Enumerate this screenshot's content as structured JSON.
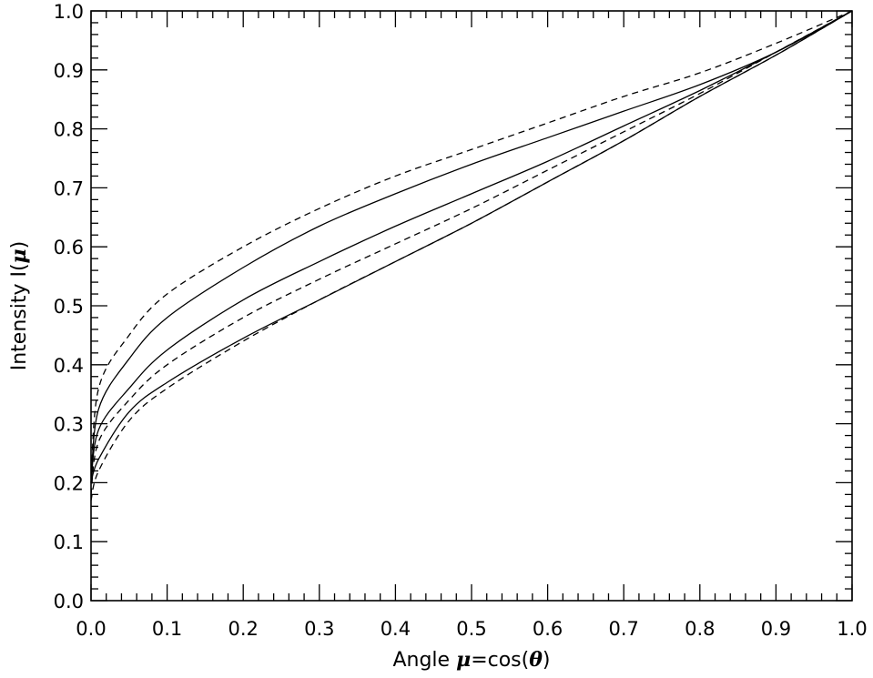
{
  "chart_data": {
    "type": "line",
    "xlabel": {
      "prefix": "Angle  ",
      "symbol": "μ",
      "middle": "=cos(",
      "symbol2": "θ",
      "suffix": ")"
    },
    "ylabel": {
      "prefix": "Intensity  I(",
      "symbol": "μ",
      "suffix": ")"
    },
    "xlim": [
      0.0,
      1.0
    ],
    "ylim": [
      0.0,
      1.0
    ],
    "xticks": [
      "0.0",
      "0.1",
      "0.2",
      "0.3",
      "0.4",
      "0.5",
      "0.6",
      "0.7",
      "0.8",
      "0.9",
      "1.0"
    ],
    "yticks": [
      "0.0",
      "0.1",
      "0.2",
      "0.3",
      "0.4",
      "0.5",
      "0.6",
      "0.7",
      "0.8",
      "0.9",
      "1.0"
    ],
    "grid": false,
    "legend": "none",
    "series": [
      {
        "style": "dashed",
        "color": "#000000",
        "points": [
          [
            0.0,
            0.2
          ],
          [
            0.01,
            0.36
          ],
          [
            0.05,
            0.45
          ],
          [
            0.1,
            0.52
          ],
          [
            0.2,
            0.6
          ],
          [
            0.3,
            0.665
          ],
          [
            0.4,
            0.72
          ],
          [
            0.5,
            0.765
          ],
          [
            0.6,
            0.81
          ],
          [
            0.7,
            0.855
          ],
          [
            0.8,
            0.895
          ],
          [
            0.9,
            0.945
          ],
          [
            1.0,
            1.0
          ]
        ]
      },
      {
        "style": "solid",
        "color": "#000000",
        "points": [
          [
            0.0,
            0.2
          ],
          [
            0.01,
            0.325
          ],
          [
            0.05,
            0.41
          ],
          [
            0.1,
            0.48
          ],
          [
            0.2,
            0.565
          ],
          [
            0.3,
            0.635
          ],
          [
            0.4,
            0.69
          ],
          [
            0.5,
            0.74
          ],
          [
            0.6,
            0.785
          ],
          [
            0.7,
            0.83
          ],
          [
            0.8,
            0.875
          ],
          [
            0.9,
            0.93
          ],
          [
            1.0,
            1.0
          ]
        ]
      },
      {
        "style": "solid",
        "color": "#000000",
        "points": [
          [
            0.0,
            0.2
          ],
          [
            0.01,
            0.29
          ],
          [
            0.05,
            0.36
          ],
          [
            0.1,
            0.425
          ],
          [
            0.2,
            0.51
          ],
          [
            0.3,
            0.575
          ],
          [
            0.4,
            0.635
          ],
          [
            0.5,
            0.69
          ],
          [
            0.6,
            0.745
          ],
          [
            0.7,
            0.805
          ],
          [
            0.8,
            0.865
          ],
          [
            0.9,
            0.93
          ],
          [
            1.0,
            1.0
          ]
        ]
      },
      {
        "style": "dashed",
        "color": "#000000",
        "points": [
          [
            0.0,
            0.18
          ],
          [
            0.01,
            0.27
          ],
          [
            0.05,
            0.34
          ],
          [
            0.1,
            0.4
          ],
          [
            0.2,
            0.48
          ],
          [
            0.3,
            0.545
          ],
          [
            0.4,
            0.605
          ],
          [
            0.5,
            0.665
          ],
          [
            0.6,
            0.73
          ],
          [
            0.7,
            0.795
          ],
          [
            0.8,
            0.86
          ],
          [
            0.9,
            0.93
          ],
          [
            1.0,
            1.0
          ]
        ]
      },
      {
        "style": "solid",
        "color": "#000000",
        "points": [
          [
            0.0,
            0.2
          ],
          [
            0.01,
            0.24
          ],
          [
            0.05,
            0.32
          ],
          [
            0.1,
            0.37
          ],
          [
            0.2,
            0.445
          ],
          [
            0.3,
            0.51
          ],
          [
            0.4,
            0.575
          ],
          [
            0.5,
            0.64
          ],
          [
            0.6,
            0.71
          ],
          [
            0.7,
            0.78
          ],
          [
            0.8,
            0.855
          ],
          [
            0.9,
            0.925
          ],
          [
            1.0,
            1.0
          ]
        ]
      },
      {
        "style": "dashed",
        "color": "#000000",
        "points": [
          [
            0.0,
            0.17
          ],
          [
            0.01,
            0.22
          ],
          [
            0.05,
            0.305
          ],
          [
            0.1,
            0.36
          ],
          [
            0.2,
            0.44
          ],
          [
            0.3,
            0.51
          ],
          [
            0.4,
            0.575
          ],
          [
            0.5,
            0.64
          ],
          [
            0.6,
            0.71
          ],
          [
            0.7,
            0.78
          ],
          [
            0.8,
            0.855
          ],
          [
            0.9,
            0.925
          ],
          [
            1.0,
            1.0
          ]
        ]
      }
    ]
  }
}
